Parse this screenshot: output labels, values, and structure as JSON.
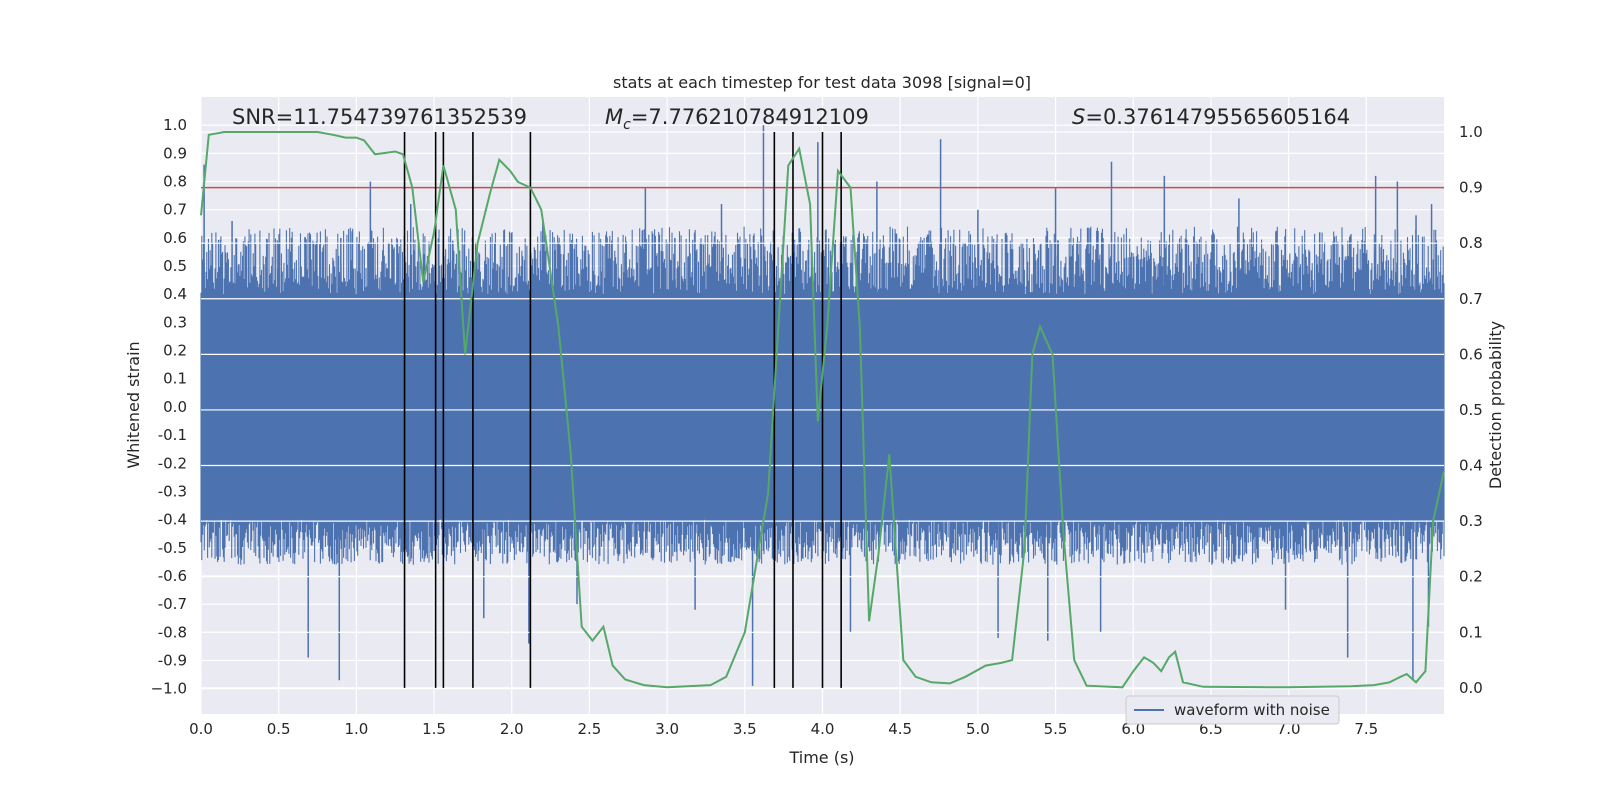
{
  "chart_data": {
    "type": "line",
    "title": "stats at each timestep for test data 3098 [signal=0]",
    "xlabel": "Time (s)",
    "ylabel": "Whitened strain",
    "ylabel_right": "Detection probability",
    "xlim": [
      0,
      8
    ],
    "ylim": [
      -1.09,
      1.1
    ],
    "ylim_right": [
      -0.047,
      1.063
    ],
    "x_ticks": [
      "0.0",
      "0.5",
      "1.0",
      "1.5",
      "2.0",
      "2.5",
      "3.0",
      "3.5",
      "4.0",
      "4.5",
      "5.0",
      "5.5",
      "6.0",
      "6.5",
      "7.0",
      "7.5"
    ],
    "y_ticks": [
      "1.0",
      "0.9",
      "0.8",
      "0.7",
      "0.6",
      "0.5",
      "0.4",
      "0.3",
      "0.2",
      "0.1",
      "0.0",
      "-0.1",
      "-0.2",
      "-0.3",
      "-0.4",
      "-0.5",
      "-0.6",
      "-0.7",
      "-0.8",
      "-0.9",
      "−1.0"
    ],
    "y_ticks_right": [
      "1.0",
      "0.9",
      "0.8",
      "0.7",
      "0.6",
      "0.5",
      "0.4",
      "0.3",
      "0.2",
      "0.1",
      "0.0"
    ],
    "annotations": {
      "snr": "SNR=11.754739761352539",
      "mc_label": "M",
      "mc_sub": "c",
      "mc_value": "=7.776210784912109",
      "s_label": "S",
      "s_value": "=0.37614795565605164"
    },
    "legend": {
      "label": "waveform with noise",
      "position": "lower-right"
    },
    "threshold": {
      "value": 0.9,
      "color": "#c44e52"
    },
    "vlines_x": [
      1.31,
      1.51,
      1.56,
      1.75,
      2.12,
      3.69,
      3.81,
      4.0,
      4.12
    ],
    "waveform": {
      "series_name": "waveform with noise",
      "color": "#4c72b0",
      "core_amplitude": 0.4,
      "upper_peaks": [
        {
          "x": 0.02,
          "y": 0.86
        },
        {
          "x": 0.2,
          "y": 0.66
        },
        {
          "x": 0.5,
          "y": 0.58
        },
        {
          "x": 0.9,
          "y": 0.6
        },
        {
          "x": 1.09,
          "y": 0.8
        },
        {
          "x": 1.35,
          "y": 0.72
        },
        {
          "x": 1.62,
          "y": 0.59
        },
        {
          "x": 2.2,
          "y": 0.66
        },
        {
          "x": 2.86,
          "y": 0.78
        },
        {
          "x": 3.05,
          "y": 0.6
        },
        {
          "x": 3.35,
          "y": 0.72
        },
        {
          "x": 3.62,
          "y": 1.0
        },
        {
          "x": 3.97,
          "y": 0.94
        },
        {
          "x": 4.35,
          "y": 0.8
        },
        {
          "x": 4.76,
          "y": 0.95
        },
        {
          "x": 5.0,
          "y": 0.7
        },
        {
          "x": 5.5,
          "y": 0.78
        },
        {
          "x": 5.86,
          "y": 0.87
        },
        {
          "x": 6.2,
          "y": 0.82
        },
        {
          "x": 6.68,
          "y": 0.74
        },
        {
          "x": 7.2,
          "y": 0.62
        },
        {
          "x": 7.56,
          "y": 0.82
        },
        {
          "x": 7.7,
          "y": 0.8
        },
        {
          "x": 7.82,
          "y": 0.68
        },
        {
          "x": 7.92,
          "y": 0.72
        }
      ],
      "lower_peaks": [
        {
          "x": 0.69,
          "y": -0.89
        },
        {
          "x": 0.89,
          "y": -0.97
        },
        {
          "x": 1.82,
          "y": -0.75
        },
        {
          "x": 2.11,
          "y": -0.84
        },
        {
          "x": 2.42,
          "y": -0.7
        },
        {
          "x": 3.18,
          "y": -0.72
        },
        {
          "x": 3.55,
          "y": -0.99
        },
        {
          "x": 4.18,
          "y": -0.8
        },
        {
          "x": 5.13,
          "y": -0.82
        },
        {
          "x": 5.45,
          "y": -0.83
        },
        {
          "x": 5.79,
          "y": -0.8
        },
        {
          "x": 6.98,
          "y": -0.72
        },
        {
          "x": 7.38,
          "y": -0.89
        },
        {
          "x": 7.8,
          "y": -0.97
        },
        {
          "x": 7.9,
          "y": -0.78
        }
      ]
    },
    "detection_probability": {
      "color": "#55a868",
      "points": [
        [
          0.0,
          0.85
        ],
        [
          0.05,
          0.995
        ],
        [
          0.15,
          1.0
        ],
        [
          0.5,
          1.0
        ],
        [
          0.75,
          1.0
        ],
        [
          0.85,
          0.995
        ],
        [
          0.93,
          0.99
        ],
        [
          1.0,
          0.99
        ],
        [
          1.05,
          0.985
        ],
        [
          1.12,
          0.96
        ],
        [
          1.25,
          0.965
        ],
        [
          1.3,
          0.96
        ],
        [
          1.36,
          0.9
        ],
        [
          1.43,
          0.73
        ],
        [
          1.5,
          0.82
        ],
        [
          1.56,
          0.94
        ],
        [
          1.64,
          0.86
        ],
        [
          1.7,
          0.6
        ],
        [
          1.78,
          0.8
        ],
        [
          1.86,
          0.89
        ],
        [
          1.92,
          0.95
        ],
        [
          1.99,
          0.93
        ],
        [
          2.04,
          0.91
        ],
        [
          2.12,
          0.9
        ],
        [
          2.19,
          0.86
        ],
        [
          2.3,
          0.65
        ],
        [
          2.38,
          0.42
        ],
        [
          2.45,
          0.11
        ],
        [
          2.52,
          0.085
        ],
        [
          2.59,
          0.11
        ],
        [
          2.65,
          0.04
        ],
        [
          2.73,
          0.015
        ],
        [
          2.85,
          0.005
        ],
        [
          3.0,
          0.001
        ],
        [
          3.28,
          0.005
        ],
        [
          3.38,
          0.02
        ],
        [
          3.5,
          0.1
        ],
        [
          3.65,
          0.35
        ],
        [
          3.78,
          0.94
        ],
        [
          3.85,
          0.97
        ],
        [
          3.92,
          0.87
        ],
        [
          3.97,
          0.48
        ],
        [
          4.03,
          0.65
        ],
        [
          4.1,
          0.93
        ],
        [
          4.18,
          0.9
        ],
        [
          4.24,
          0.65
        ],
        [
          4.3,
          0.12
        ],
        [
          4.36,
          0.24
        ],
        [
          4.43,
          0.42
        ],
        [
          4.52,
          0.05
        ],
        [
          4.6,
          0.02
        ],
        [
          4.7,
          0.01
        ],
        [
          4.82,
          0.008
        ],
        [
          4.92,
          0.02
        ],
        [
          5.05,
          0.04
        ],
        [
          5.15,
          0.045
        ],
        [
          5.22,
          0.05
        ],
        [
          5.3,
          0.25
        ],
        [
          5.35,
          0.6
        ],
        [
          5.4,
          0.65
        ],
        [
          5.48,
          0.6
        ],
        [
          5.55,
          0.28
        ],
        [
          5.62,
          0.05
        ],
        [
          5.7,
          0.004
        ],
        [
          5.85,
          0.002
        ],
        [
          5.93,
          0.001
        ],
        [
          6.0,
          0.03
        ],
        [
          6.07,
          0.055
        ],
        [
          6.13,
          0.045
        ],
        [
          6.18,
          0.03
        ],
        [
          6.23,
          0.055
        ],
        [
          6.27,
          0.065
        ],
        [
          6.32,
          0.01
        ],
        [
          6.45,
          0.002
        ],
        [
          7.0,
          0.001
        ],
        [
          7.4,
          0.003
        ],
        [
          7.55,
          0.005
        ],
        [
          7.65,
          0.01
        ],
        [
          7.72,
          0.02
        ],
        [
          7.76,
          0.025
        ],
        [
          7.82,
          0.01
        ],
        [
          7.88,
          0.03
        ],
        [
          7.93,
          0.3
        ],
        [
          8.0,
          0.39
        ]
      ]
    }
  }
}
